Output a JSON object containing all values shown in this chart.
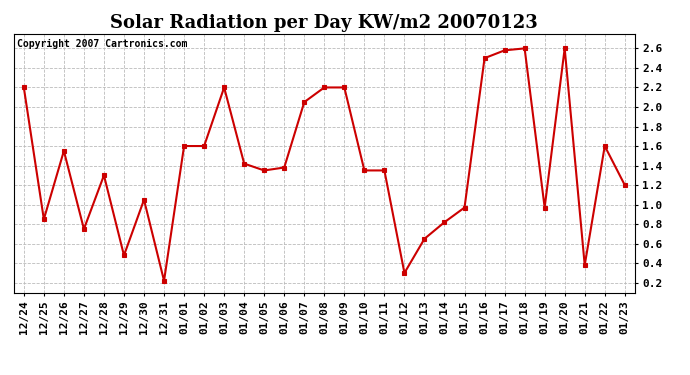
{
  "title": "Solar Radiation per Day KW/m2 20070123",
  "copyright": "Copyright 2007 Cartronics.com",
  "labels": [
    "12/24",
    "12/25",
    "12/26",
    "12/27",
    "12/28",
    "12/29",
    "12/30",
    "12/31",
    "01/01",
    "01/02",
    "01/03",
    "01/04",
    "01/05",
    "01/06",
    "01/07",
    "01/08",
    "01/09",
    "01/10",
    "01/11",
    "01/12",
    "01/13",
    "01/14",
    "01/15",
    "01/16",
    "01/17",
    "01/18",
    "01/19",
    "01/20",
    "01/21",
    "01/22",
    "01/23"
  ],
  "values": [
    2.2,
    0.85,
    1.55,
    0.75,
    1.3,
    0.48,
    1.05,
    0.22,
    1.6,
    1.6,
    2.2,
    1.42,
    1.35,
    1.38,
    2.05,
    2.2,
    2.2,
    1.35,
    1.35,
    0.3,
    0.65,
    0.82,
    0.97,
    2.5,
    2.58,
    2.6,
    0.97,
    2.6,
    0.38,
    1.6,
    1.2
  ],
  "line_color": "#cc0000",
  "marker": "s",
  "marker_size": 3,
  "marker_color": "#cc0000",
  "bg_color": "#ffffff",
  "plot_bg_color": "#ffffff",
  "grid_color": "#bbbbbb",
  "ylim": [
    0.1,
    2.75
  ],
  "yticks": [
    0.2,
    0.4,
    0.6,
    0.8,
    1.0,
    1.2,
    1.4,
    1.6,
    1.8,
    2.0,
    2.2,
    2.4,
    2.6
  ],
  "title_fontsize": 13,
  "copyright_fontsize": 7,
  "tick_fontsize": 8,
  "line_width": 1.5
}
